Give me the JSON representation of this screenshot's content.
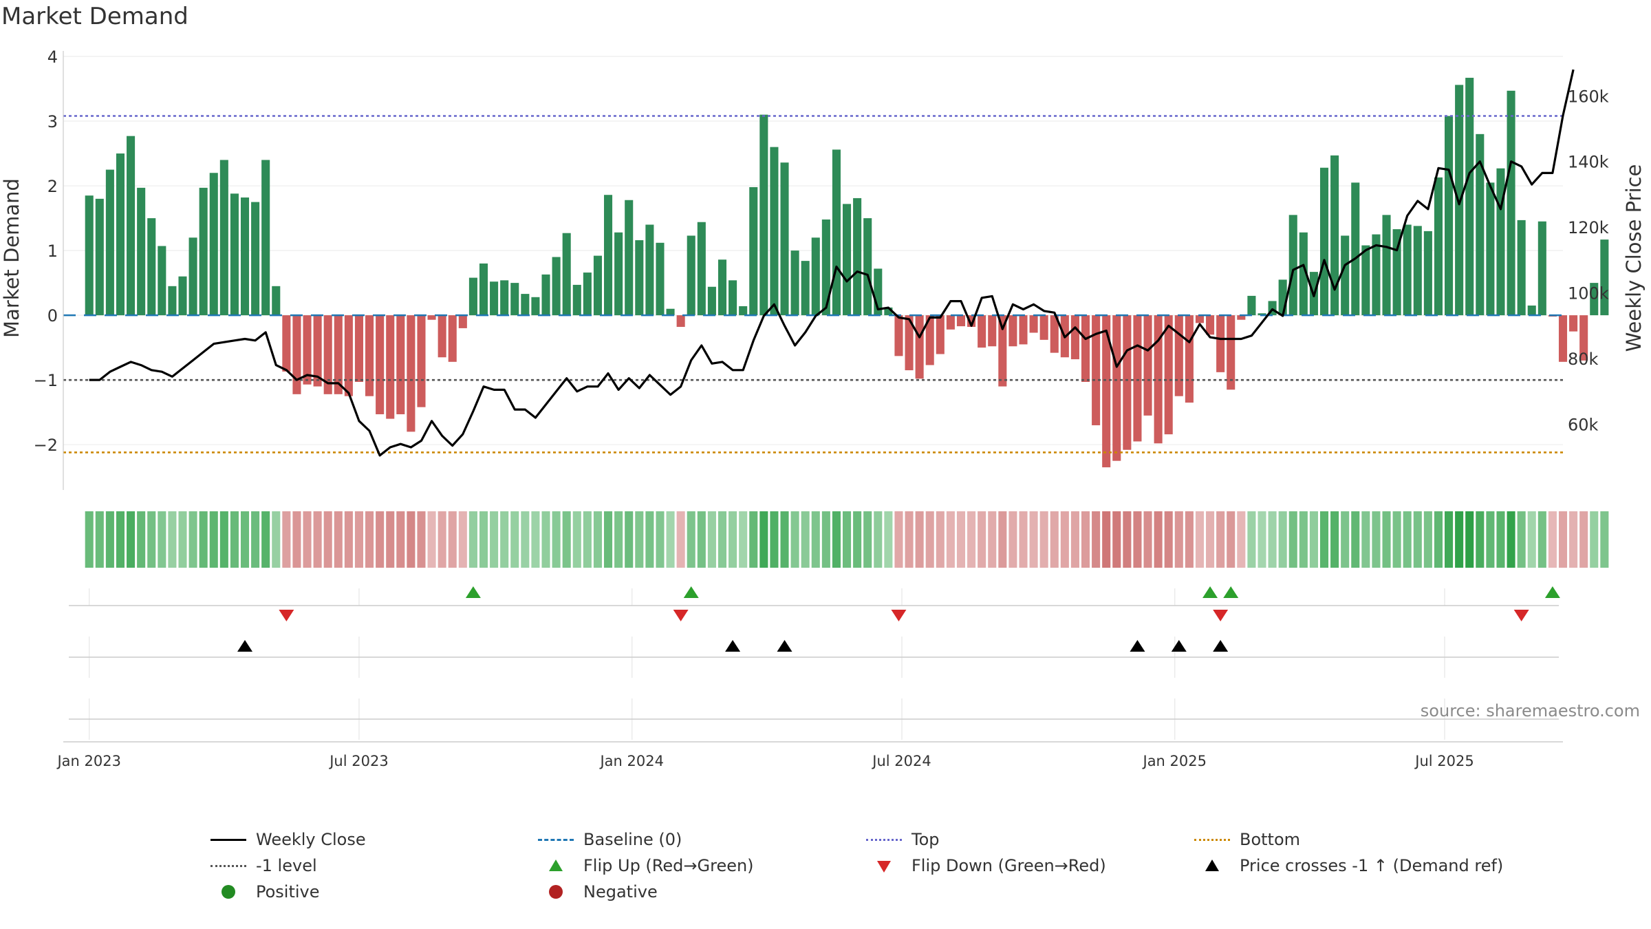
{
  "title": "Market Demand",
  "chart_data": {
    "type": "bar",
    "title": "Market Demand",
    "ylabel_left": "Market Demand",
    "ylabel_right": "Weekly Close Price",
    "ylim_left": [
      -2.7,
      4
    ],
    "yticks_left": [
      4,
      3,
      2,
      1,
      0,
      -1,
      -2
    ],
    "ytick_labels_left": [
      "4",
      "3",
      "2",
      "1",
      "0",
      "−1",
      "−2"
    ],
    "ylim_right": [
      40000,
      172000
    ],
    "yticks_right": [
      160000,
      140000,
      120000,
      100000,
      80000,
      60000
    ],
    "ytick_labels_right": [
      "160k",
      "140k",
      "120k",
      "100k",
      "80k",
      "60k"
    ],
    "xlim_weeks": [
      -2.5,
      142
    ],
    "x_ticks": [
      {
        "label": "Jan 2023",
        "week": 0
      },
      {
        "label": "Jul 2023",
        "week": 26
      },
      {
        "label": "Jan 2024",
        "week": 52.3
      },
      {
        "label": "Jul 2024",
        "week": 78.3
      },
      {
        "label": "Jan 2025",
        "week": 104.6
      },
      {
        "label": "Jul 2025",
        "week": 130.6
      }
    ],
    "reference_lines": {
      "top": 3.08,
      "bottom": -2.12,
      "minus_one": -1,
      "baseline": 0
    },
    "demand": [
      1.85,
      1.8,
      2.25,
      2.5,
      2.77,
      1.97,
      1.5,
      1.07,
      0.45,
      0.6,
      1.2,
      1.97,
      2.2,
      2.4,
      1.88,
      1.82,
      1.75,
      2.4,
      0.45,
      -0.87,
      -1.22,
      -1.07,
      -1.1,
      -1.22,
      -1.22,
      -1.25,
      -1.03,
      -1.25,
      -1.53,
      -1.6,
      -1.53,
      -1.8,
      -1.42,
      -0.07,
      -0.65,
      -0.72,
      -0.2,
      0.58,
      0.8,
      0.52,
      0.54,
      0.5,
      0.33,
      0.28,
      0.63,
      0.9,
      1.27,
      0.47,
      0.66,
      0.92,
      1.86,
      1.28,
      1.78,
      1.16,
      1.4,
      1.12,
      0.1,
      -0.18,
      1.23,
      1.44,
      0.44,
      0.86,
      0.54,
      0.14,
      1.98,
      3.1,
      2.6,
      2.36,
      1.0,
      0.84,
      1.2,
      1.48,
      2.56,
      1.72,
      1.81,
      1.5,
      0.72,
      0.12,
      -0.63,
      -0.85,
      -0.98,
      -0.77,
      -0.6,
      -0.22,
      -0.17,
      -0.18,
      -0.5,
      -0.48,
      -1.1,
      -0.48,
      -0.45,
      -0.27,
      -0.38,
      -0.58,
      -0.65,
      -0.68,
      -1.03,
      -1.7,
      -2.35,
      -2.25,
      -2.08,
      -1.95,
      -1.55,
      -1.98,
      -1.84,
      -1.25,
      -1.35,
      -0.12,
      -0.3,
      -0.88,
      -1.15,
      -0.07,
      0.3,
      0.03,
      0.22,
      0.55,
      1.55,
      1.28,
      0.67,
      2.28,
      2.47,
      1.23,
      2.05,
      1.08,
      1.25,
      1.55,
      1.33,
      1.4,
      1.38,
      1.3,
      2.13,
      3.08,
      3.56,
      3.67,
      2.8,
      2.05,
      2.27,
      3.47,
      1.47,
      0.15,
      1.45,
      -0.02,
      -0.72,
      -0.25,
      -0.7,
      0.5,
      1.17
    ],
    "weekly_close": [
      73500,
      73500,
      76000,
      77500,
      79000,
      78000,
      76500,
      76000,
      74500,
      77000,
      79500,
      82000,
      84500,
      85000,
      85500,
      86000,
      85500,
      88000,
      78000,
      76500,
      73500,
      75000,
      74500,
      72500,
      72500,
      69500,
      61000,
      58000,
      50500,
      53000,
      54000,
      53000,
      55000,
      61000,
      56500,
      53500,
      57000,
      64000,
      71500,
      70500,
      70500,
      64500,
      64500,
      62000,
      66000,
      70000,
      74000,
      70000,
      71500,
      71500,
      75500,
      70500,
      74000,
      71000,
      75000,
      72000,
      69000,
      71500,
      79500,
      84000,
      78500,
      79000,
      76500,
      76500,
      85500,
      93000,
      96500,
      90000,
      84000,
      88000,
      93000,
      95500,
      108000,
      103500,
      106500,
      105500,
      95000,
      95500,
      92500,
      92000,
      86500,
      92500,
      92500,
      97500,
      97500,
      90000,
      98500,
      99000,
      89000,
      96500,
      95000,
      96500,
      94500,
      94000,
      86500,
      89500,
      86000,
      87500,
      88500,
      77500,
      82500,
      84000,
      82500,
      85500,
      90000,
      87500,
      85000,
      90500,
      86500,
      86000,
      86000,
      86000,
      87000,
      91000,
      95000,
      93000,
      107000,
      108500,
      99000,
      110000,
      101000,
      108500,
      110500,
      113000,
      114500,
      114000,
      113000,
      123500,
      128000,
      125500,
      138000,
      137500,
      127000,
      136500,
      140000,
      132500,
      125500,
      140000,
      138500,
      133000,
      136500,
      136500,
      154000,
      168000
    ],
    "strip_intensity": [
      0.42,
      0.41,
      0.51,
      0.57,
      0.63,
      0.45,
      0.34,
      0.24,
      0.1,
      0.14,
      0.27,
      0.45,
      0.5,
      0.55,
      0.43,
      0.41,
      0.4,
      0.55,
      0.1,
      0.24,
      0.34,
      0.29,
      0.3,
      0.34,
      0.34,
      0.34,
      0.28,
      0.34,
      0.42,
      0.44,
      0.42,
      0.49,
      0.39,
      0.02,
      0.18,
      0.2,
      0.05,
      0.13,
      0.18,
      0.12,
      0.12,
      0.11,
      0.08,
      0.06,
      0.14,
      0.2,
      0.29,
      0.11,
      0.15,
      0.21,
      0.42,
      0.29,
      0.4,
      0.26,
      0.32,
      0.25,
      0.02,
      0.05,
      0.28,
      0.33,
      0.1,
      0.2,
      0.12,
      0.03,
      0.45,
      0.7,
      0.59,
      0.54,
      0.23,
      0.19,
      0.27,
      0.34,
      0.58,
      0.39,
      0.41,
      0.34,
      0.16,
      0.03,
      0.17,
      0.23,
      0.27,
      0.21,
      0.16,
      0.06,
      0.05,
      0.05,
      0.14,
      0.13,
      0.3,
      0.13,
      0.12,
      0.07,
      0.1,
      0.16,
      0.18,
      0.19,
      0.28,
      0.47,
      0.64,
      0.62,
      0.57,
      0.53,
      0.42,
      0.54,
      0.5,
      0.34,
      0.37,
      0.03,
      0.08,
      0.24,
      0.32,
      0.02,
      0.07,
      0.01,
      0.05,
      0.13,
      0.35,
      0.29,
      0.15,
      0.52,
      0.56,
      0.28,
      0.47,
      0.25,
      0.28,
      0.35,
      0.3,
      0.32,
      0.31,
      0.3,
      0.48,
      0.7,
      0.81,
      0.84,
      0.64,
      0.47,
      0.52,
      0.79,
      0.33,
      0.03,
      0.33,
      0.01,
      0.2,
      0.07,
      0.19,
      0.11,
      0.27
    ],
    "flip_up_weeks": [
      37,
      58,
      108,
      110,
      141
    ],
    "flip_down_weeks": [
      19,
      57,
      78,
      109,
      138
    ],
    "price_cross_weeks": [
      15,
      62,
      67,
      101,
      105,
      109
    ],
    "source": "source: sharemaestro.com",
    "colors": {
      "positive_bar": "#2e8b57",
      "negative_bar": "#cd5c5c",
      "weekly_close": "#000000",
      "baseline": "#1f77b4",
      "top": "#6666cc",
      "bottom": "#cc8800",
      "minus_one": "#555555",
      "flip_up": "#2ca02c",
      "flip_down": "#d62728",
      "price_cross": "#000000",
      "positive_dot": "#228b22",
      "negative_dot": "#b22222"
    },
    "legend": [
      {
        "label": "Weekly Close",
        "symbol": "line-solid"
      },
      {
        "label": "Baseline (0)",
        "symbol": "line-dashed"
      },
      {
        "label": "Top",
        "symbol": "line-dotted-top"
      },
      {
        "label": "Bottom",
        "symbol": "line-dotted-bottom"
      },
      {
        "label": "-1 level",
        "symbol": "line-dotted-minus"
      },
      {
        "label": "Flip Up (Red→Green)",
        "symbol": "tri-up-green"
      },
      {
        "label": "Flip Down (Green→Red)",
        "symbol": "tri-down-red"
      },
      {
        "label": "Price crosses -1 ↑ (Demand ref)",
        "symbol": "tri-up-black"
      },
      {
        "label": "Positive",
        "symbol": "dot-green"
      },
      {
        "label": "Negative",
        "symbol": "dot-red"
      }
    ]
  }
}
